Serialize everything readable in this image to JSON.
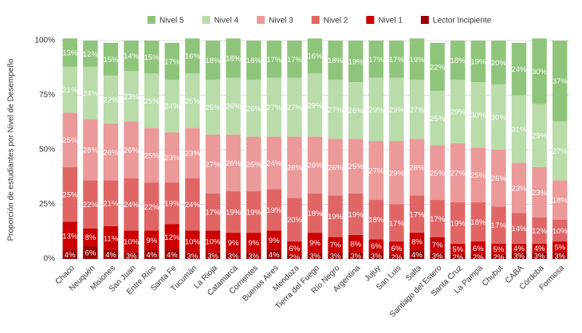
{
  "chart_data": {
    "type": "stacked_bar",
    "y_label": "Proporción de estudiantes por Nivel de Desempeño",
    "categories": [
      "Chaco",
      "Neuquén",
      "Misiones",
      "San Juan",
      "Entre Ríos",
      "Santa Fe",
      "Tucumán",
      "La Rioja",
      "Catamarca",
      "Corrientes",
      "Buenos Aires",
      "Mendoza",
      "Tierra del Fuego",
      "Río Negro",
      "Argentina",
      "Jujuy",
      "San Luis",
      "Salta",
      "Santiago del Estero",
      "Santa Cruz",
      "La Pampa",
      "Chubut",
      "CABA",
      "Córdoba",
      "Formosa"
    ],
    "series": [
      {
        "name": "Nivel 5",
        "color": "#8fc57b",
        "values": [
          13,
          12,
          15,
          14,
          15,
          17,
          16,
          18,
          18,
          18,
          17,
          17,
          16,
          18,
          19,
          17,
          17,
          19,
          22,
          18,
          19,
          20,
          24,
          30,
          37
        ],
        "value_labels": [
          "13%",
          "12%",
          "15%",
          "14%",
          "15%",
          "17%",
          "16%",
          "18%",
          "18%",
          "18%",
          "17%",
          "17%",
          "16%",
          "18%",
          "19%",
          "17%",
          "17%",
          "19%",
          "22%",
          "18%",
          "19%",
          "20%",
          "24%",
          "30%",
          "37%"
        ]
      },
      {
        "name": "Nivel 4",
        "color": "#b9dcaa",
        "values": [
          21,
          24,
          22,
          23,
          25,
          24,
          25,
          25,
          26,
          26,
          27,
          27,
          29,
          27,
          26,
          29,
          29,
          27,
          25,
          29,
          30,
          30,
          31,
          29,
          27
        ],
        "value_labels": [
          "21%",
          "24%",
          "22%",
          "23%",
          "25%",
          "24%",
          "25%",
          "25%",
          "26%",
          "26%",
          "27%",
          "27%",
          "29%",
          "27%",
          "26%",
          "29%",
          "29%",
          "27%",
          "25%",
          "29%",
          "30%",
          "30%",
          "31%",
          "29%",
          "27%"
        ]
      },
      {
        "name": "Nivel 3",
        "color": "#ec9999",
        "values": [
          25,
          28,
          26,
          26,
          25,
          23,
          23,
          27,
          26,
          25,
          24,
          28,
          26,
          26,
          25,
          27,
          29,
          26,
          25,
          27,
          25,
          26,
          23,
          23,
          18
        ],
        "value_labels": [
          "25%",
          "28%",
          "26%",
          "26%",
          "25%",
          "23%",
          "23%",
          "27%",
          "26%",
          "25%",
          "24%",
          "28%",
          "26%",
          "26%",
          "25%",
          "27%",
          "29%",
          "26%",
          "25%",
          "27%",
          "25%",
          "26%",
          "23%",
          "23%",
          "18%"
        ]
      },
      {
        "name": "Nivel 2",
        "color": "#e06666",
        "values": [
          25,
          22,
          21,
          24,
          22,
          19,
          24,
          17,
          19,
          19,
          19,
          20,
          18,
          19,
          19,
          18,
          17,
          17,
          17,
          19,
          18,
          17,
          14,
          12,
          10
        ],
        "value_labels": [
          "25%",
          "22%",
          "21%",
          "24%",
          "22%",
          "19%",
          "24%",
          "17%",
          "19%",
          "19%",
          "19%",
          "20%",
          "18%",
          "19%",
          "19%",
          "18%",
          "17%",
          "17%",
          "17%",
          "19%",
          "18%",
          "17%",
          "14%",
          "12%",
          "10%"
        ]
      },
      {
        "name": "Nivel 1",
        "color": "#cc0000",
        "values": [
          13,
          8,
          11,
          10,
          9,
          12,
          10,
          10,
          9,
          9,
          9,
          6,
          9,
          7,
          8,
          6,
          6,
          8,
          7,
          5,
          6,
          5,
          4,
          4,
          5
        ],
        "value_labels": [
          "13%",
          "8%",
          "11%",
          "10%",
          "9%",
          "12%",
          "10%",
          "10%",
          "9%",
          "9%",
          "9%",
          "6%",
          "9%",
          "7%",
          "8%",
          "6%",
          "6%",
          "8%",
          "7%",
          "5%",
          "6%",
          "5%",
          "4%",
          "4%",
          "5%"
        ]
      },
      {
        "name": "Lector Incipiente",
        "color": "#990000",
        "values": [
          4,
          6,
          4,
          3,
          4,
          4,
          3,
          3,
          3,
          3,
          4,
          2,
          3,
          3,
          3,
          3,
          2,
          4,
          3,
          2,
          2,
          2,
          3,
          3,
          3
        ],
        "value_labels": [
          "4%",
          "6%",
          "4%",
          "3%",
          "4%",
          "4%",
          "3%",
          "3%",
          "3%",
          "3%",
          "4%",
          "2%",
          "3%",
          "3%",
          "3%",
          "3%",
          "2%",
          "4%",
          "3%",
          "2%",
          "2%",
          "2%",
          "3%",
          "3%",
          "3%"
        ]
      }
    ],
    "ylim": [
      0,
      100
    ],
    "yticks": [
      {
        "value": 0,
        "label": "0%"
      },
      {
        "value": 25,
        "label": "25%"
      },
      {
        "value": 50,
        "label": "50%"
      },
      {
        "value": 75,
        "label": "75%"
      },
      {
        "value": 100,
        "label": "100%"
      }
    ],
    "grid": true,
    "legend": "top"
  }
}
